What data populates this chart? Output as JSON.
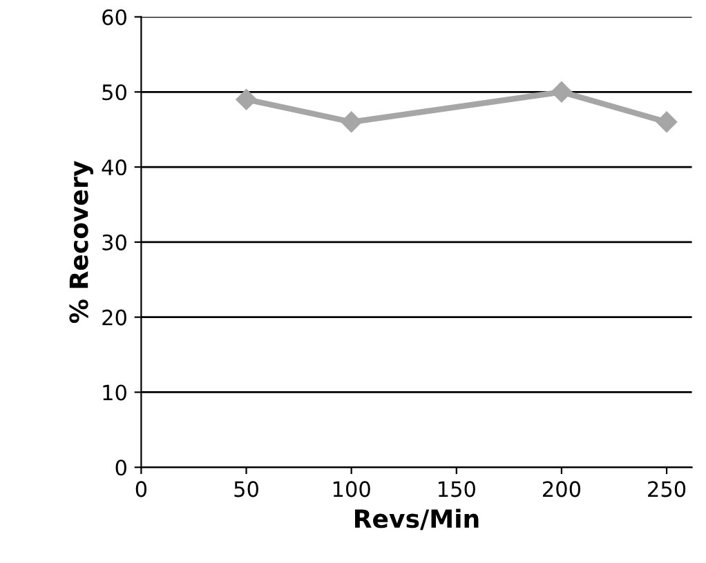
{
  "chart_data": {
    "type": "line",
    "xlabel": "Revs/Min",
    "ylabel": "% Recovery",
    "x": [
      50,
      100,
      200,
      250
    ],
    "series": [
      {
        "color": "#a6a6a6",
        "values": [
          49,
          46,
          50,
          46
        ]
      }
    ],
    "xlim": [
      0,
      262
    ],
    "xticks": [
      0,
      50,
      100,
      150,
      200,
      250
    ],
    "ylim": [
      0,
      60
    ],
    "yticks": [
      0,
      10,
      20,
      30,
      40,
      50,
      60
    ],
    "grid": "y",
    "marker": "diamond",
    "line_style": "solid"
  }
}
